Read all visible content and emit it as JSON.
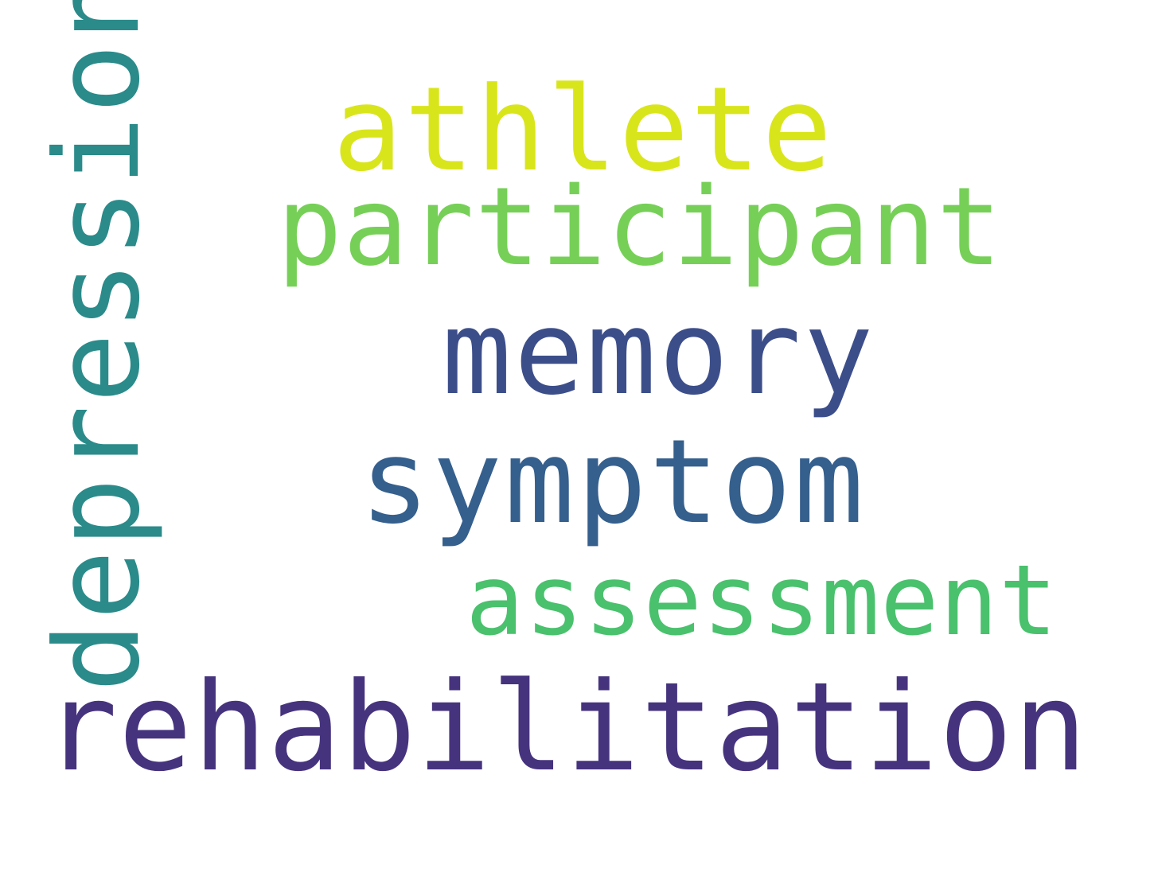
{
  "words": [
    {
      "text": "athlete",
      "color": "#d9e51b"
    },
    {
      "text": "participant",
      "color": "#76d057"
    },
    {
      "text": "memory",
      "color": "#3c4e8a"
    },
    {
      "text": "symptom",
      "color": "#355f8d"
    },
    {
      "text": "assessment",
      "color": "#4ac16d"
    },
    {
      "text": "rehabilitation",
      "color": "#46337e"
    },
    {
      "text": "depression",
      "color": "#2a8b8a"
    }
  ]
}
